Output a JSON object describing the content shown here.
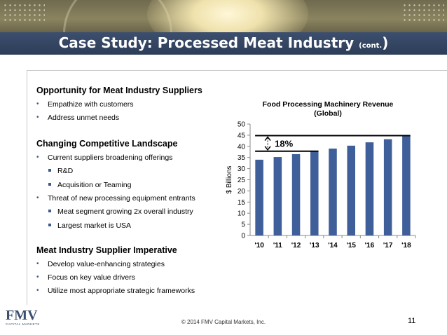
{
  "header": {
    "title": "Case Study: Processed Meat Industry",
    "title_suffix": "(cont.",
    "title_close": ")"
  },
  "sections": [
    {
      "heading": "Opportunity for Meat Industry Suppliers",
      "items": [
        {
          "text": "Empathize with customers",
          "level": 1
        },
        {
          "text": "Address unmet needs",
          "level": 1
        }
      ]
    },
    {
      "heading": "Changing Competitive Landscape",
      "items": [
        {
          "text": "Current suppliers broadening offerings",
          "level": 1
        },
        {
          "text": "R&D",
          "level": 2
        },
        {
          "text": "Acquisition or Teaming",
          "level": 2
        },
        {
          "text": "Threat of new processing equipment entrants",
          "level": 1
        },
        {
          "text": "Meat segment growing 2x overall industry",
          "level": 2
        },
        {
          "text": "Largest market is USA",
          "level": 2
        }
      ]
    },
    {
      "heading": "Meat Industry Supplier Imperative",
      "items": [
        {
          "text": "Develop value-enhancing strategies",
          "level": 1
        },
        {
          "text": "Focus on key value drivers",
          "level": 1
        },
        {
          "text": "Utilize most appropriate strategic frameworks",
          "level": 1
        }
      ]
    }
  ],
  "chart_data": {
    "type": "bar",
    "title": "Food Processing Machinery Revenue",
    "subtitle": "(Global)",
    "ylabel": "$ Billions",
    "xlabel": "",
    "categories": [
      "'10",
      "'11",
      "'12",
      "'13",
      "'14",
      "'15",
      "'16",
      "'17",
      "'18"
    ],
    "values": [
      34,
      35.2,
      36.5,
      37.8,
      39,
      40.3,
      41.8,
      43.2,
      44.8
    ],
    "ylim": [
      0,
      50
    ],
    "yticks": [
      0,
      5,
      10,
      15,
      20,
      25,
      30,
      35,
      40,
      45,
      50
    ],
    "annotation": "18%",
    "bar_color": "#3f5f9a",
    "grid": false,
    "legend": "none"
  },
  "footer": {
    "copyright": "© 2014 FMV Capital Markets, Inc.",
    "page": "11"
  },
  "logo": {
    "mark": "FMV",
    "sub": "CAPITAL MARKETS"
  }
}
